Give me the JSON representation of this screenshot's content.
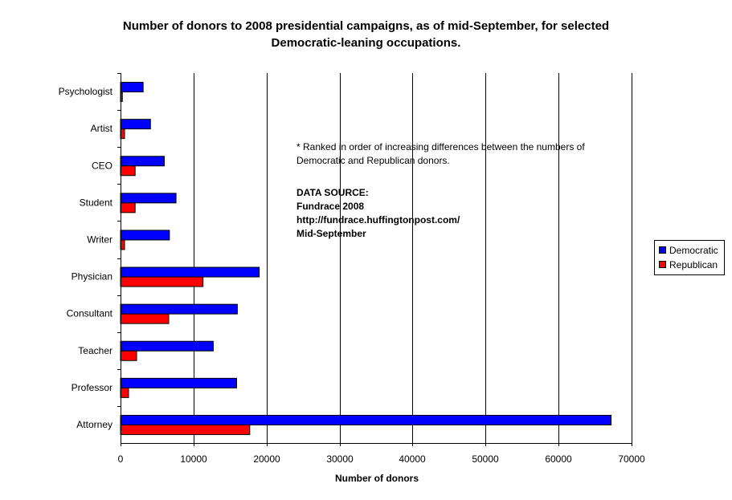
{
  "chart_data": {
    "type": "bar",
    "orientation": "horizontal",
    "title_line1": "Number of donors to 2008 presidential campaigns, as of mid-September, for selected",
    "title_line2": "Democratic-leaning occupations.",
    "xlabel": "Number of donors",
    "ylabel": "",
    "xlim": [
      0,
      70000
    ],
    "xticks": [
      0,
      10000,
      20000,
      30000,
      40000,
      50000,
      60000,
      70000
    ],
    "xtick_labels": [
      "0",
      "10000",
      "20000",
      "30000",
      "40000",
      "50000",
      "60000",
      "70000"
    ],
    "grid": "vertical",
    "legend_position": "right",
    "categories": [
      "Psychologist",
      "Artist",
      "CEO",
      "Student",
      "Writer",
      "Physician",
      "Consultant",
      "Teacher",
      "Professor",
      "Attorney"
    ],
    "series": [
      {
        "name": "Democratic",
        "color": "#0000ff",
        "values": [
          3100,
          4100,
          6000,
          7600,
          6700,
          19000,
          16000,
          12700,
          15900,
          67200
        ]
      },
      {
        "name": "Republican",
        "color": "#ff0000",
        "values": [
          250,
          550,
          2000,
          2000,
          550,
          11300,
          6600,
          2200,
          1100,
          17700
        ]
      }
    ]
  },
  "annotations": {
    "note_line1": "* Ranked in order of increasing differences between the numbers of",
    "note_line2": "Democratic and Republican donors.",
    "source_line1": "DATA SOURCE:",
    "source_line2": "Fundrace 2008",
    "source_line3": "http://fundrace.huffingtonpost.com/",
    "source_line4": "Mid-September"
  },
  "legend": {
    "items": [
      "Democratic",
      "Republican"
    ]
  }
}
